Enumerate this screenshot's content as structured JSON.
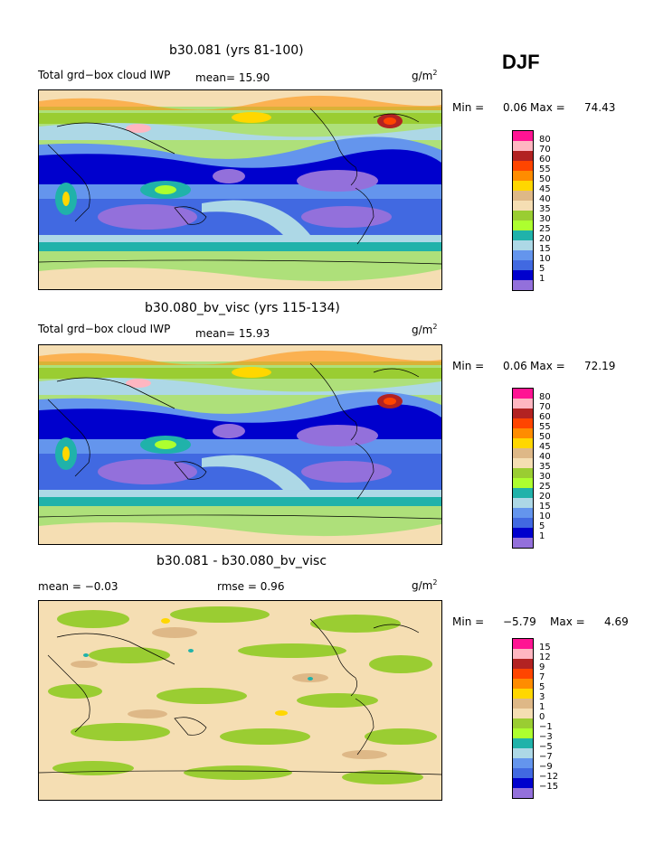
{
  "season": "DJF",
  "panels": [
    {
      "title": "b30.081 (yrs 81-100)",
      "field": "Total grd−box cloud IWP",
      "stat1": "mean=  15.90",
      "stat2": "",
      "units": "g/m",
      "units_exp": "2",
      "min_label": "Min =",
      "min_val": "0.06",
      "max_label": "Max =",
      "max_val": "74.43",
      "levels": [
        "80",
        "70",
        "60",
        "55",
        "50",
        "45",
        "40",
        "35",
        "30",
        "25",
        "20",
        "15",
        "10",
        "5",
        "1"
      ]
    },
    {
      "title": "b30.080_bv_visc (yrs 115-134)",
      "field": "Total grd−box cloud IWP",
      "stat1": "mean=  15.93",
      "stat2": "",
      "units": "g/m",
      "units_exp": "2",
      "min_label": "Min =",
      "min_val": "0.06",
      "max_label": "Max =",
      "max_val": "72.19",
      "levels": [
        "80",
        "70",
        "60",
        "55",
        "50",
        "45",
        "40",
        "35",
        "30",
        "25",
        "20",
        "15",
        "10",
        "5",
        "1"
      ]
    },
    {
      "title": "b30.081 - b30.080_bv_visc",
      "field": "",
      "stat1": "mean =   −0.03",
      "stat2": "rmse =    0.96",
      "units": "g/m",
      "units_exp": "2",
      "min_label": "Min =",
      "min_val": "−5.79",
      "max_label": "Max =",
      "max_val": "4.69",
      "levels": [
        "15",
        "12",
        "9",
        "7",
        "5",
        "3",
        "1",
        "0",
        "−1",
        "−3",
        "−5",
        "−7",
        "−9",
        "−12",
        "−15"
      ]
    }
  ],
  "colors": [
    "#ff1493",
    "#ffb6c1",
    "#b22222",
    "#ff4500",
    "#ff8c00",
    "#ffd700",
    "#deb887",
    "#f5deb3",
    "#9acd32",
    "#adff2f",
    "#20b2aa",
    "#add8e6",
    "#6495ed",
    "#4169e1",
    "#0000cd",
    "#9370db"
  ],
  "diff_colors": [
    "#ff1493",
    "#ffb6c1",
    "#b22222",
    "#ff4500",
    "#ff8c00",
    "#ffd700",
    "#deb887",
    "#f5deb3",
    "#9acd32",
    "#adff2f",
    "#20b2aa",
    "#add8e6",
    "#6495ed",
    "#4169e1",
    "#0000cd",
    "#9370db"
  ]
}
